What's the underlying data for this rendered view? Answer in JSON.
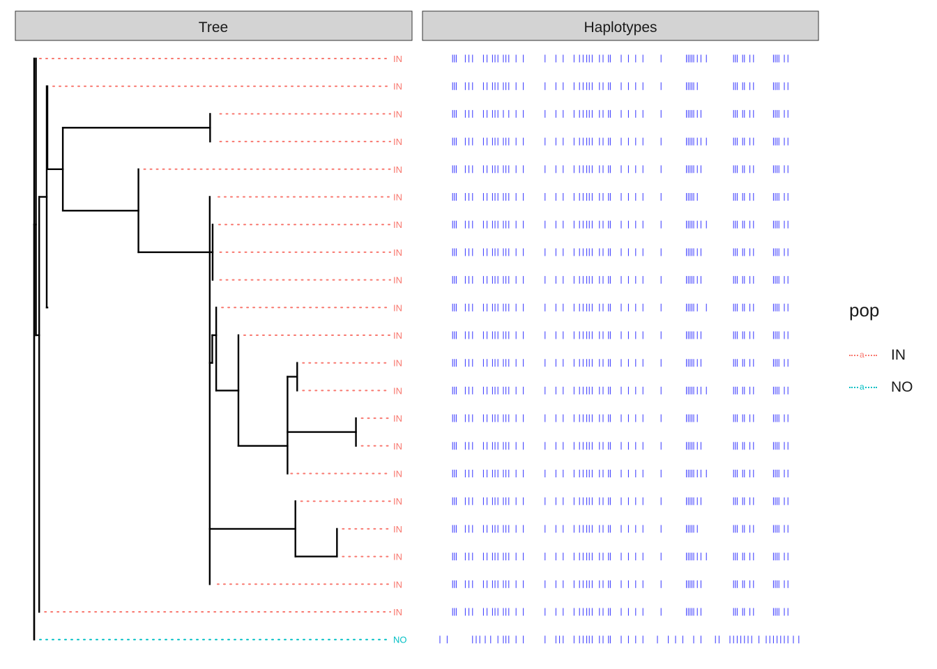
{
  "chart_data": {
    "type": "tree",
    "facets": [
      {
        "label": "Tree"
      },
      {
        "label": "Haplotypes"
      }
    ],
    "tree": {
      "tips": [
        {
          "pop": "IN",
          "depth": 0.0
        },
        {
          "pop": "IN",
          "depth": 0.037
        },
        {
          "pop": "IN",
          "depth": 0.503
        },
        {
          "pop": "IN",
          "depth": 0.503
        },
        {
          "pop": "IN",
          "depth": 0.291
        },
        {
          "pop": "IN",
          "depth": 0.498
        },
        {
          "pop": "IN",
          "depth": 0.5
        },
        {
          "pop": "IN",
          "depth": 0.503
        },
        {
          "pop": "IN",
          "depth": 0.503
        },
        {
          "pop": "IN",
          "depth": 0.508
        },
        {
          "pop": "IN",
          "depth": 0.57
        },
        {
          "pop": "IN",
          "depth": 0.734
        },
        {
          "pop": "IN",
          "depth": 0.734
        },
        {
          "pop": "IN",
          "depth": 0.898
        },
        {
          "pop": "IN",
          "depth": 0.898
        },
        {
          "pop": "IN",
          "depth": 0.701
        },
        {
          "pop": "IN",
          "depth": 0.729
        },
        {
          "pop": "IN",
          "depth": 0.845
        },
        {
          "pop": "IN",
          "depth": 0.845
        },
        {
          "pop": "IN",
          "depth": 0.496
        },
        {
          "pop": "IN",
          "depth": 0.014
        },
        {
          "pop": "NO",
          "depth": 0.0
        }
      ],
      "edges": [
        [
          0.0,
          6.0,
          0.0,
          21.0
        ],
        [
          0.0,
          21.0,
          0.0,
          0.0
        ],
        [
          0.0,
          6.0,
          0.005,
          6.0
        ],
        [
          0.005,
          0.0,
          0.005,
          10.0
        ],
        [
          0.005,
          10.0,
          0.014,
          10.0
        ],
        [
          0.014,
          10.0,
          0.014,
          20.0
        ],
        [
          0.014,
          10.0,
          0.014,
          5.0
        ],
        [
          0.014,
          5.0,
          0.035,
          5.0
        ],
        [
          0.035,
          1.0,
          0.035,
          9.0
        ],
        [
          0.035,
          9.0,
          0.037,
          9.0
        ],
        [
          0.037,
          1.0,
          0.037,
          4.0
        ],
        [
          0.037,
          4.0,
          0.08,
          4.0
        ],
        [
          0.08,
          2.5,
          0.08,
          5.5
        ],
        [
          0.08,
          2.5,
          0.491,
          2.5
        ],
        [
          0.491,
          2.0,
          0.491,
          3.0
        ],
        [
          0.08,
          5.5,
          0.291,
          5.5
        ],
        [
          0.291,
          4.0,
          0.291,
          7.0
        ],
        [
          0.291,
          7.0,
          0.49,
          7.0
        ],
        [
          0.49,
          5.0,
          0.49,
          19.0
        ],
        [
          0.49,
          7.0,
          0.498,
          7.0
        ],
        [
          0.498,
          6.0,
          0.498,
          8.0
        ],
        [
          0.49,
          11.0,
          0.497,
          11.0
        ],
        [
          0.497,
          10.0,
          0.497,
          11.0
        ],
        [
          0.497,
          10.0,
          0.508,
          10.0
        ],
        [
          0.508,
          9.0,
          0.508,
          12.0
        ],
        [
          0.508,
          12.0,
          0.57,
          12.0
        ],
        [
          0.57,
          10.0,
          0.57,
          14.0
        ],
        [
          0.57,
          14.0,
          0.707,
          14.0
        ],
        [
          0.707,
          11.5,
          0.707,
          15.0
        ],
        [
          0.707,
          11.5,
          0.734,
          11.5
        ],
        [
          0.734,
          11.0,
          0.734,
          12.0
        ],
        [
          0.707,
          13.5,
          0.898,
          13.5
        ],
        [
          0.898,
          13.0,
          0.898,
          14.0
        ],
        [
          0.49,
          17.0,
          0.729,
          17.0
        ],
        [
          0.729,
          16.0,
          0.729,
          18.0
        ],
        [
          0.729,
          18.0,
          0.845,
          18.0
        ],
        [
          0.845,
          17.0,
          0.845,
          18.0
        ]
      ]
    },
    "haplotypes": {
      "base": [
        0.035,
        0.04,
        0.045,
        0.07,
        0.08,
        0.09,
        0.12,
        0.13,
        0.145,
        0.152,
        0.16,
        0.175,
        0.182,
        0.19,
        0.21,
        0.23,
        0.29,
        0.32,
        0.34,
        0.37,
        0.385,
        0.395,
        0.405,
        0.412,
        0.42,
        0.44,
        0.45,
        0.465,
        0.47,
        0.5,
        0.52,
        0.54,
        0.56,
        0.61,
        0.68,
        0.685,
        0.69,
        0.695,
        0.7,
        0.71,
        0.72,
        0.81,
        0.815,
        0.82,
        0.835,
        0.84,
        0.855,
        0.865,
        0.92,
        0.925,
        0.93,
        0.935,
        0.95,
        0.96
      ],
      "NO": [
        0.0,
        0.02,
        0.09,
        0.1,
        0.11,
        0.125,
        0.14,
        0.16,
        0.175,
        0.182,
        0.19,
        0.21,
        0.23,
        0.29,
        0.32,
        0.33,
        0.34,
        0.37,
        0.385,
        0.395,
        0.405,
        0.412,
        0.42,
        0.44,
        0.45,
        0.465,
        0.47,
        0.5,
        0.52,
        0.54,
        0.56,
        0.6,
        0.63,
        0.65,
        0.67,
        0.7,
        0.72,
        0.76,
        0.77,
        0.8,
        0.81,
        0.82,
        0.83,
        0.84,
        0.85,
        0.86,
        0.88,
        0.9,
        0.91,
        0.92,
        0.93,
        0.94,
        0.95,
        0.96,
        0.975,
        0.99
      ]
    },
    "legend": {
      "title": "pop",
      "glyph": "a",
      "placement": "right",
      "entries": [
        {
          "label": "IN",
          "color": "#F8766D"
        },
        {
          "label": "NO",
          "color": "#00BFC4"
        }
      ]
    },
    "colors": {
      "IN": "#F8766D",
      "NO": "#00BFC4",
      "haplotype": "#3333FF",
      "strip_fill": "#D3D3D3",
      "strip_border": "#333333",
      "branch": "#000000"
    }
  }
}
